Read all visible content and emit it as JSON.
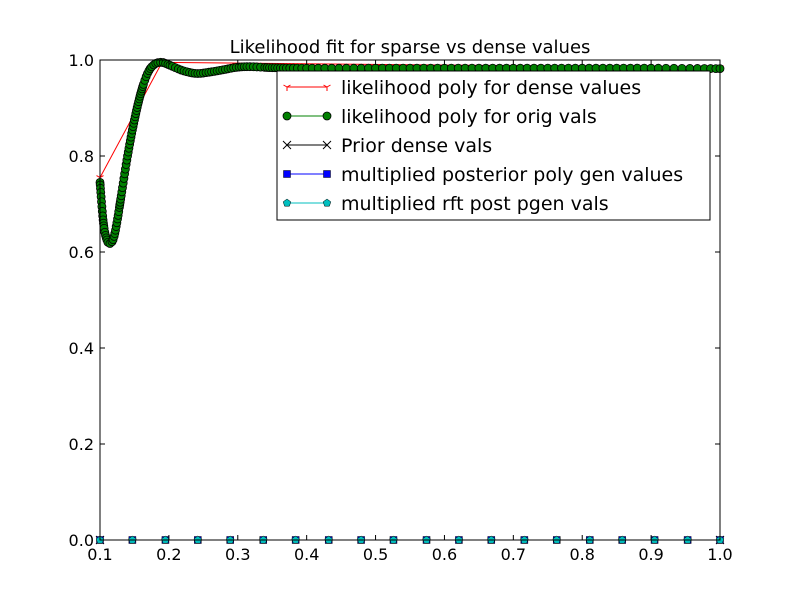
{
  "chart_data": {
    "type": "line",
    "title": "Likelihood fit for sparse vs dense values",
    "xlabel": "",
    "ylabel": "",
    "xlim": [
      0.1,
      1.0
    ],
    "ylim": [
      0.0,
      1.0
    ],
    "x_ticks": [
      "0.1",
      "0.2",
      "0.3",
      "0.4",
      "0.5",
      "0.6",
      "0.7",
      "0.8",
      "0.9",
      "1.0"
    ],
    "y_ticks": [
      "0.0",
      "0.2",
      "0.4",
      "0.6",
      "0.8",
      "1.0"
    ],
    "grid": false,
    "legend_position": "top-right",
    "series": [
      {
        "name": "likelihood poly for dense values",
        "color": "#ff0000",
        "marker": "tri_down",
        "x": [
          0.1,
          0.19,
          1.0
        ],
        "y": [
          0.755,
          0.995,
          0.984
        ]
      },
      {
        "name": "likelihood poly for orig vals",
        "color": "#008000",
        "marker": "circle",
        "x": [
          0.1,
          0.105,
          0.11,
          0.115,
          0.12,
          0.125,
          0.13,
          0.14,
          0.15,
          0.16,
          0.17,
          0.18,
          0.19,
          0.2,
          0.22,
          0.24,
          0.26,
          0.28,
          0.3,
          0.32,
          0.35,
          0.4,
          0.5,
          0.6,
          0.7,
          0.8,
          0.9,
          1.0
        ],
        "y": [
          0.745,
          0.66,
          0.625,
          0.618,
          0.63,
          0.665,
          0.71,
          0.8,
          0.875,
          0.935,
          0.975,
          0.992,
          0.995,
          0.99,
          0.978,
          0.972,
          0.975,
          0.98,
          0.985,
          0.986,
          0.984,
          0.983,
          0.983,
          0.983,
          0.983,
          0.983,
          0.983,
          0.982
        ]
      },
      {
        "name": "Prior dense vals",
        "color": "#000000",
        "marker": "x",
        "x": [
          0.1,
          1.0
        ],
        "y": [
          0.0,
          0.0
        ]
      },
      {
        "name": "multiplied posterior poly gen values",
        "color": "#0000ff",
        "marker": "square",
        "x": [
          0.1,
          0.147,
          0.195,
          0.242,
          0.289,
          0.337,
          0.384,
          0.432,
          0.479,
          0.526,
          0.574,
          0.621,
          0.668,
          0.716,
          0.763,
          0.811,
          0.858,
          0.905,
          0.953,
          1.0
        ],
        "y": [
          0,
          0,
          0,
          0,
          0,
          0,
          0,
          0,
          0,
          0,
          0,
          0,
          0,
          0,
          0,
          0,
          0,
          0,
          0,
          0
        ]
      },
      {
        "name": "multiplied rft post pgen vals",
        "color": "#00bfbf",
        "marker": "pentagon",
        "x": [
          0.1,
          0.147,
          0.195,
          0.242,
          0.289,
          0.337,
          0.384,
          0.432,
          0.479,
          0.526,
          0.574,
          0.621,
          0.668,
          0.716,
          0.763,
          0.811,
          0.858,
          0.905,
          0.953,
          1.0
        ],
        "y": [
          0,
          0,
          0,
          0,
          0,
          0,
          0,
          0,
          0,
          0,
          0,
          0,
          0,
          0,
          0,
          0,
          0,
          0,
          0,
          0
        ]
      }
    ]
  }
}
